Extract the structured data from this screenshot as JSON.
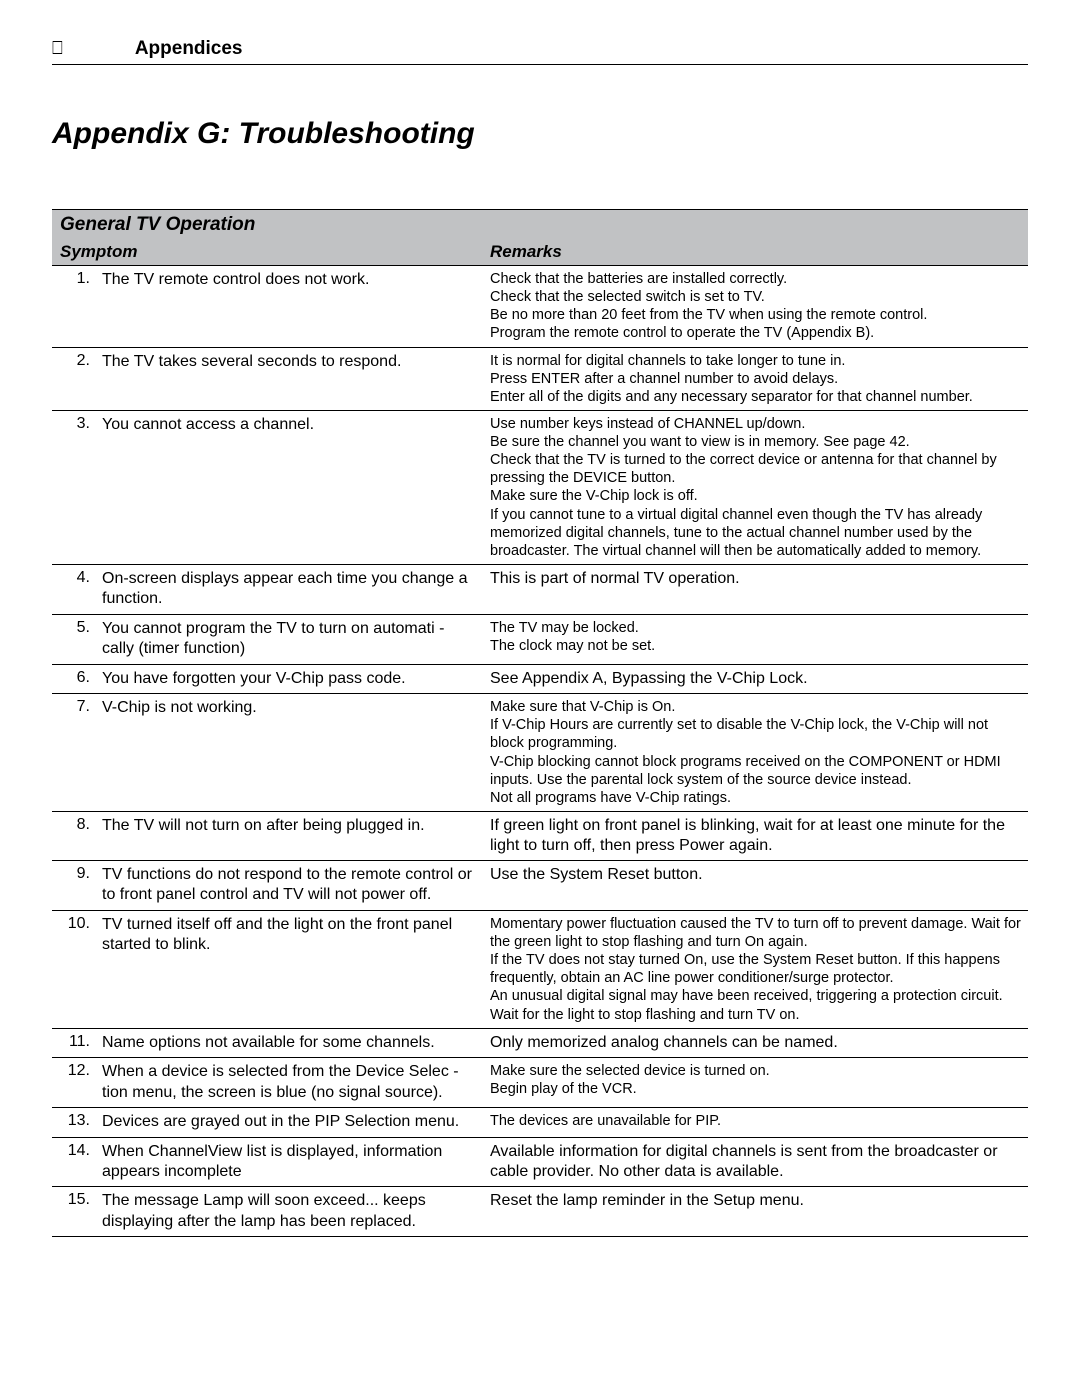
{
  "header": {
    "glyph": "⎕",
    "label": "Appendices"
  },
  "title": "Appendix G:  Troubleshooting",
  "section_title": "General TV Operation",
  "columns": {
    "symptom": "Symptom",
    "remarks": "Remarks"
  },
  "rows": [
    {
      "n": "1.",
      "symptom": "The TV remote control does not work.",
      "remark_size": "small",
      "remarks": [
        "Check that the batteries are installed correctly.",
        "Check that the selected switch is set to  TV.",
        "Be no more than 20 feet from the TV when using the remote control.",
        "Program the remote control to operate the TV (Appendix B)."
      ]
    },
    {
      "n": "2.",
      "symptom": "The TV takes several seconds to respond.",
      "remark_size": "small",
      "remarks": [
        "It is normal for digital channels to take longer to tune in.",
        "Press ENTER after a channel number to avoid delays.",
        "Enter all of the digits and any necessary separator for that channel number."
      ]
    },
    {
      "n": "3.",
      "symptom": "You cannot access a channel.",
      "remark_size": "small",
      "remarks": [
        "Use number keys instead of CHANNEL up/down.",
        "Be sure the channel you want to view is in memory.  See page 42.",
        "Check that the TV is turned to the correct device or antenna for that channel by pressing the DEVICE button.",
        "Make sure the V-Chip lock is off.",
        "If you cannot tune to a virtual digital channel even though the TV has already memorized digital channels, tune to the actual channel number used by the broadcaster.  The virtual channel will then be automatically added to memory."
      ]
    },
    {
      "n": "4.",
      "symptom": "On-screen displays appear each time you change a function.",
      "remark_size": "big",
      "remarks": [
        "This is part of normal TV operation."
      ]
    },
    {
      "n": "5.",
      "symptom": "You cannot program the TV to turn on automati -cally (timer function)",
      "remark_size": "small",
      "remarks": [
        "The TV may be locked.",
        "The clock may not be set."
      ]
    },
    {
      "n": "6.",
      "symptom": "You have forgotten your V-Chip pass code.",
      "remark_size": "big",
      "remarks": [
        "See Appendix A, Bypassing the V-Chip Lock."
      ]
    },
    {
      "n": "7.",
      "symptom": "V-Chip is not working.",
      "remark_size": "small",
      "remarks": [
        "Make sure that V-Chip is On.",
        "If V-Chip Hours are currently set to disable the V-Chip lock, the V-Chip will not block programming.",
        "V-Chip blocking cannot block programs received on the COMPONENT or HDMI inputs.  Use the parental lock system of the source device instead.",
        "Not all programs have V-Chip ratings."
      ]
    },
    {
      "n": "8.",
      "symptom": "The TV will not turn on after being plugged in.",
      "remark_size": "big",
      "remarks": [
        "If green light on front panel is blinking, wait for at least one minute for the light to turn off, then press Power again."
      ]
    },
    {
      "n": "9.",
      "symptom": "TV functions do not respond to the remote control or to front panel control and TV will not power off.",
      "remark_size": "big",
      "remarks": [
        "Use the System Reset button."
      ]
    },
    {
      "n": "10.",
      "symptom": "TV turned itself off and the light on the front panel started to blink.",
      "remark_size": "small",
      "remarks": [
        "Momentary power fluctuation caused the TV to turn off to prevent damage.  Wait for the green light to stop flashing and turn On again.",
        "If the TV does not stay turned On, use the System Reset button. If this happens frequently, obtain an AC line power conditioner/surge protector.",
        "An unusual digital signal may have been received, triggering a protection circuit.  Wait for the light to stop flashing and turn TV on."
      ]
    },
    {
      "n": "11.",
      "symptom": "Name options not available for some channels.",
      "remark_size": "big",
      "remarks": [
        "Only memorized analog channels can be named."
      ]
    },
    {
      "n": "12.",
      "symptom": "When a device is selected from the Device Selec -tion menu, the screen is blue (no signal source).",
      "remark_size": "small",
      "remarks": [
        "Make sure the selected device is turned on.",
        "Begin play of the VCR."
      ]
    },
    {
      "n": "13.",
      "symptom": "Devices are grayed out in the PIP Selection menu.",
      "remark_size": "small",
      "remarks": [
        "The devices are unavailable for PIP."
      ]
    },
    {
      "n": "14.",
      "symptom": "When ChannelView  list is displayed, information appears incomplete",
      "remark_size": "big",
      "remarks": [
        "Available information for digital channels is sent from the broadcaster or cable provider.  No other data is available."
      ]
    },
    {
      "n": "15.",
      "symptom": "The message  Lamp will soon exceed...  keeps displaying after the lamp has been replaced.",
      "remark_size": "big",
      "remarks": [
        "Reset the lamp reminder in the Setup menu."
      ]
    }
  ]
}
